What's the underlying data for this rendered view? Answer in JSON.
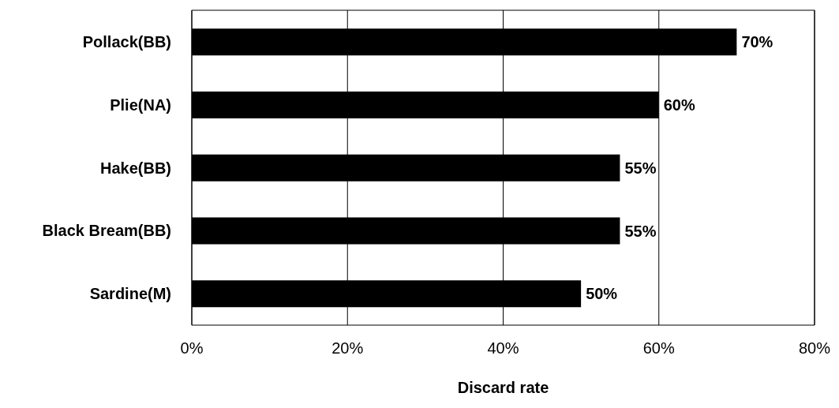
{
  "chart_data": {
    "type": "bar",
    "orientation": "horizontal",
    "xlabel": "Discard rate",
    "categories": [
      "Pollack(BB)",
      "Plie(NA)",
      "Hake(BB)",
      "Black Bream(BB)",
      "Sardine(M)"
    ],
    "values": [
      70,
      60,
      55,
      55,
      50
    ],
    "color": "#000000",
    "value_labels": [
      "70%",
      "60%",
      "55%",
      "55%",
      "50%"
    ],
    "xlim": [
      0,
      80
    ],
    "xticks": [
      {
        "value": 0,
        "label": "0%"
      },
      {
        "value": 20,
        "label": "20%"
      },
      {
        "value": 40,
        "label": "40%"
      },
      {
        "value": 60,
        "label": "60%"
      },
      {
        "value": 80,
        "label": "80%"
      }
    ],
    "grid": "x"
  }
}
